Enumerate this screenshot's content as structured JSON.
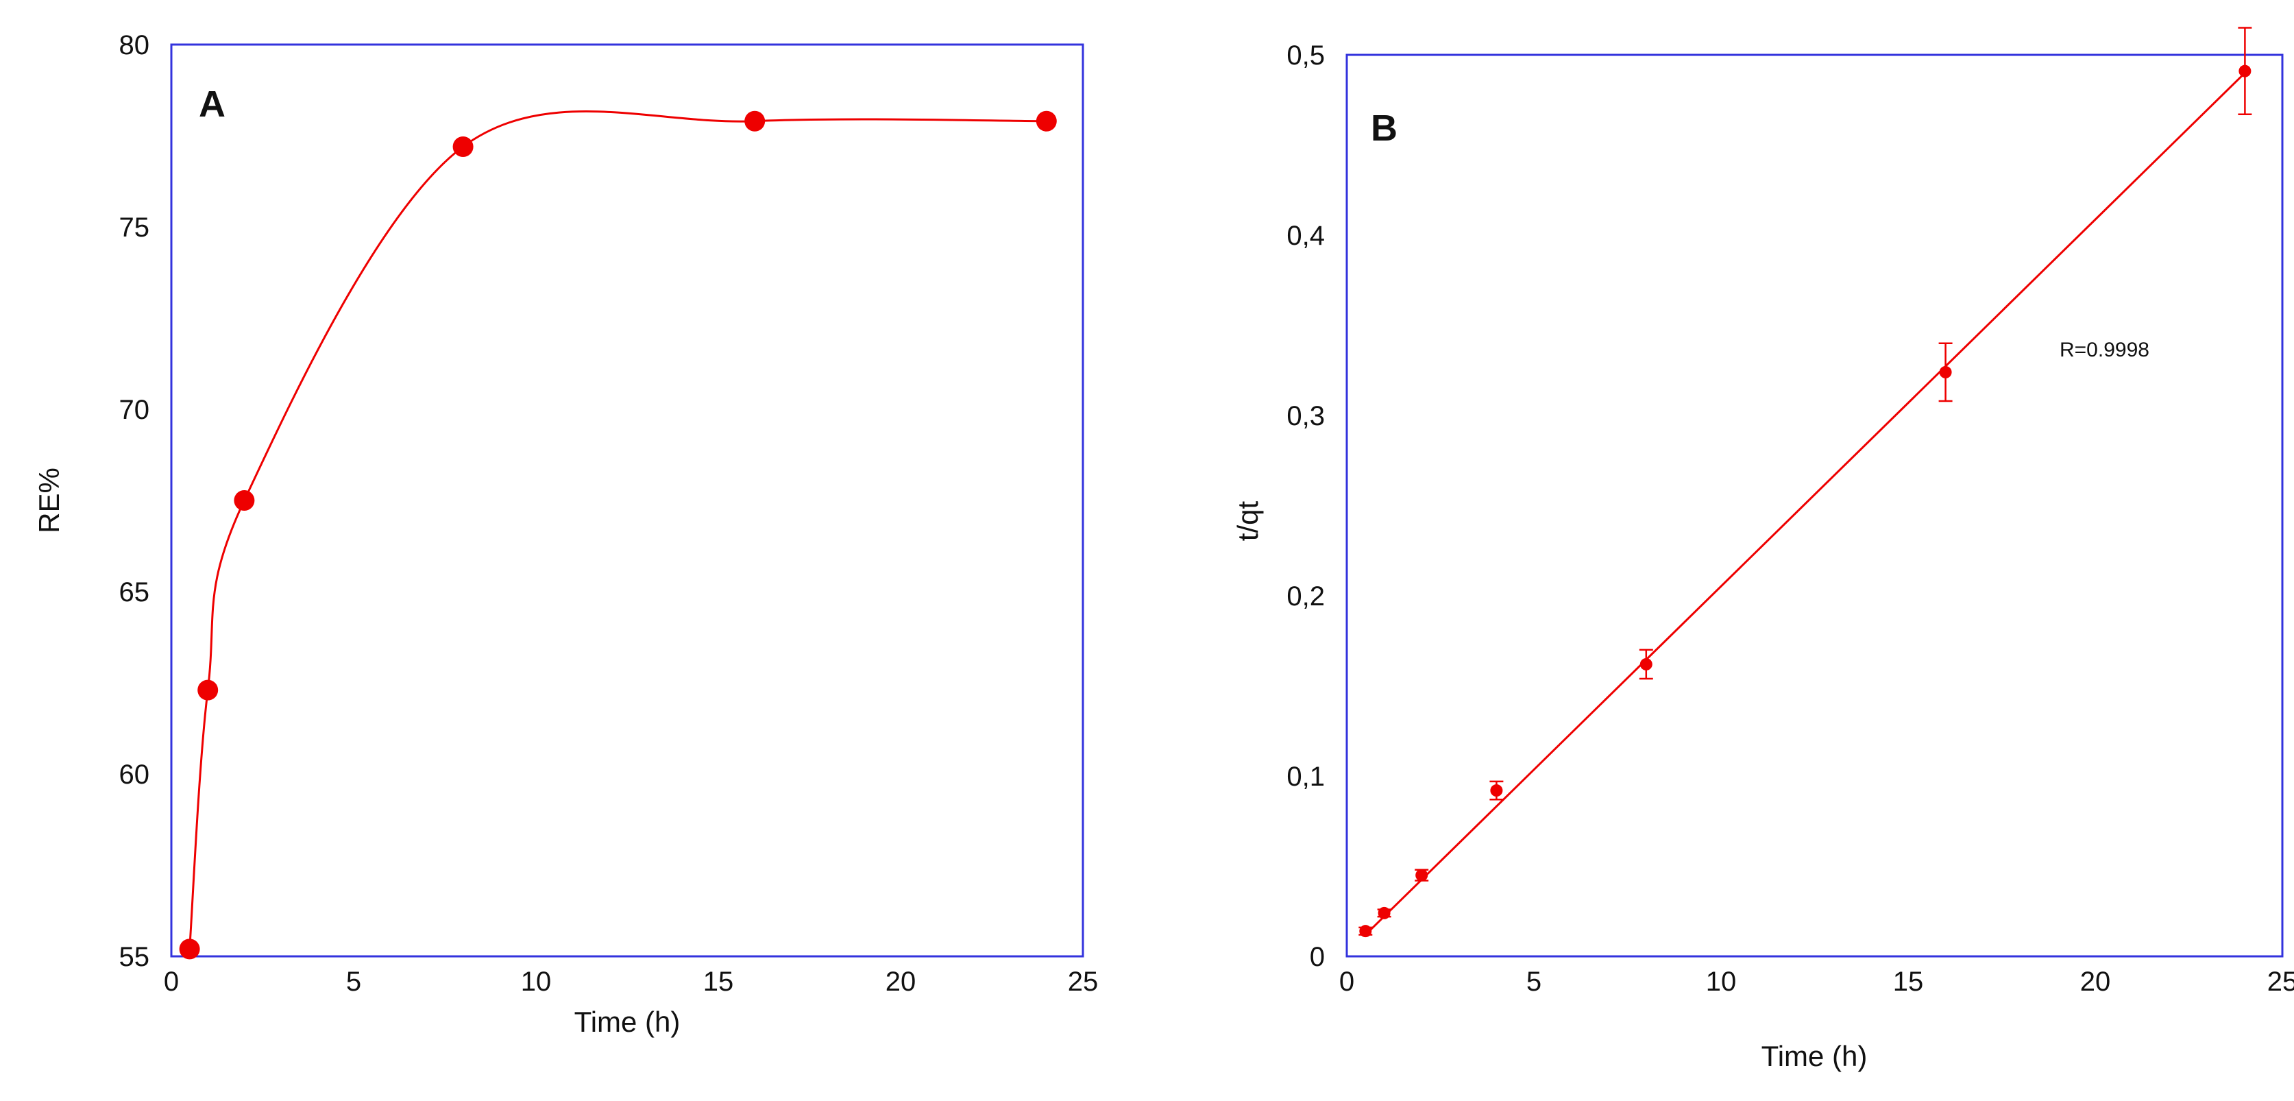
{
  "chart_data": [
    {
      "panel": "A",
      "type": "line",
      "xlabel": "Time (h)",
      "ylabel": "RE%",
      "xlim": [
        0,
        25
      ],
      "ylim": [
        55,
        80
      ],
      "xticks": [
        "0",
        "5",
        "10",
        "15",
        "20",
        "25"
      ],
      "yticks": [
        "55",
        "60",
        "65",
        "70",
        "75",
        "80"
      ],
      "x": [
        0.5,
        1,
        2,
        8,
        16,
        24
      ],
      "series": [
        {
          "values": [
            55.2,
            62.3,
            67.5,
            77.2,
            77.9,
            77.9
          ]
        }
      ],
      "curve": "smoothed",
      "marker": "filled-circle",
      "color": "#ee0000",
      "frame_color": "#3333dd",
      "grid": false
    },
    {
      "panel": "B",
      "type": "scatter",
      "xlabel": "Time (h)",
      "ylabel": "t/qt",
      "xlim": [
        0,
        25
      ],
      "ylim": [
        0,
        0.5
      ],
      "xticks": [
        "0",
        "5",
        "10",
        "15",
        "20",
        "25"
      ],
      "yticks": [
        "0",
        "0,1",
        "0,2",
        "0,3",
        "0,4",
        "0,5"
      ],
      "x": [
        0.5,
        1,
        2,
        4,
        8,
        16,
        24
      ],
      "series": [
        {
          "values": [
            0.014,
            0.024,
            0.045,
            0.092,
            0.162,
            0.324,
            0.491
          ],
          "errors": [
            0.002,
            0.002,
            0.003,
            0.005,
            0.008,
            0.016,
            0.024
          ]
        }
      ],
      "fit_line": {
        "x": [
          0.5,
          24
        ],
        "y": [
          0.012,
          0.49
        ]
      },
      "annotation": "R=0.9998",
      "marker": "filled-circle",
      "color": "#ee0000",
      "frame_color": "#3333dd",
      "grid": false
    }
  ]
}
